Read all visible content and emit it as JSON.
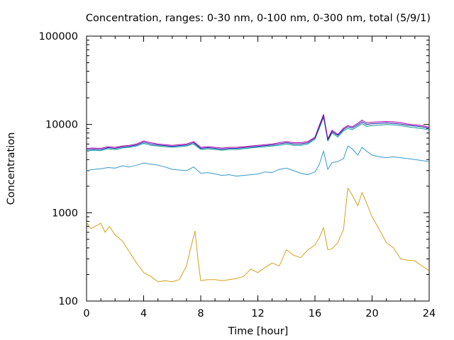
{
  "chart_data": {
    "type": "line",
    "title": "Concentration, ranges: 0-30 nm, 0-100 nm, 0-300 nm, total (5/9/1)",
    "xlabel": "Time [hour]",
    "ylabel": "Concentration",
    "xlim": [
      0,
      24
    ],
    "ylim": [
      100,
      100000
    ],
    "yscale": "log",
    "grid": false,
    "legend": "none",
    "x_ticks": [
      0,
      4,
      8,
      12,
      16,
      20,
      24
    ],
    "x_tick_labels": [
      "0",
      "4",
      "8",
      "12",
      "16",
      "20",
      "24"
    ],
    "y_ticks": [
      100,
      1000,
      10000,
      100000
    ],
    "y_tick_labels": [
      "100",
      "1000",
      "10000",
      "100000"
    ],
    "series": [
      {
        "color": "#d4a017",
        "x": [
          0,
          0.3,
          0.6,
          1.0,
          1.3,
          1.6,
          2.0,
          2.5,
          3.0,
          3.5,
          4.0,
          4.5,
          5.0,
          5.5,
          6.0,
          6.5,
          7.0,
          7.3,
          7.6,
          7.8,
          8.0,
          8.5,
          9.0,
          9.5,
          10.0,
          10.5,
          11.0,
          11.5,
          12.0,
          12.5,
          13.0,
          13.5,
          14.0,
          14.5,
          15.0,
          15.5,
          16.0,
          16.3,
          16.6,
          16.9,
          17.2,
          17.6,
          18.0,
          18.3,
          18.6,
          19.0,
          19.3,
          19.6,
          20.0,
          20.5,
          21.0,
          21.5,
          22.0,
          22.5,
          23.0,
          23.5,
          24.0
        ],
        "values": [
          780,
          660,
          700,
          760,
          600,
          700,
          560,
          480,
          360,
          270,
          210,
          190,
          165,
          170,
          165,
          175,
          250,
          400,
          620,
          300,
          170,
          175,
          175,
          170,
          175,
          180,
          190,
          230,
          210,
          240,
          270,
          250,
          380,
          330,
          310,
          380,
          430,
          520,
          680,
          380,
          390,
          460,
          650,
          1900,
          1600,
          1200,
          1700,
          1300,
          900,
          650,
          460,
          400,
          300,
          290,
          285,
          250,
          220
        ]
      },
      {
        "color": "#3399cc",
        "x": [
          0,
          0.5,
          1.0,
          1.5,
          2.0,
          2.5,
          3.0,
          3.5,
          4.0,
          4.5,
          5.0,
          5.5,
          6.0,
          6.5,
          7.0,
          7.5,
          8.0,
          8.5,
          9.0,
          9.5,
          10.0,
          10.5,
          11.0,
          11.5,
          12.0,
          12.5,
          13.0,
          13.5,
          14.0,
          14.5,
          15.0,
          15.5,
          16.0,
          16.3,
          16.6,
          16.9,
          17.2,
          17.6,
          18.0,
          18.3,
          18.6,
          19.0,
          19.3,
          19.6,
          20.0,
          20.5,
          21.0,
          21.5,
          22.0,
          22.5,
          23.0,
          23.5,
          24.0
        ],
        "values": [
          3000,
          3100,
          3150,
          3250,
          3200,
          3400,
          3300,
          3450,
          3650,
          3550,
          3450,
          3300,
          3100,
          3050,
          3000,
          3300,
          2800,
          2850,
          2750,
          2650,
          2700,
          2600,
          2650,
          2700,
          2750,
          2900,
          2850,
          3100,
          3200,
          3000,
          2800,
          2700,
          2900,
          3500,
          5000,
          3100,
          3700,
          3800,
          4100,
          5700,
          5300,
          4500,
          5500,
          5000,
          4500,
          4300,
          4200,
          4300,
          4200,
          4100,
          4000,
          3900,
          3800
        ]
      },
      {
        "color": "#009999",
        "x": [
          0,
          0.5,
          1.0,
          1.5,
          2.0,
          2.5,
          3.0,
          3.5,
          4.0,
          4.5,
          5.0,
          5.5,
          6.0,
          6.5,
          7.0,
          7.5,
          8.0,
          8.5,
          9.0,
          9.5,
          10.0,
          10.5,
          11.0,
          11.5,
          12.0,
          12.5,
          13.0,
          13.5,
          14.0,
          14.5,
          15.0,
          15.5,
          16.0,
          16.3,
          16.6,
          16.9,
          17.2,
          17.6,
          18.0,
          18.3,
          18.6,
          19.0,
          19.3,
          19.6,
          20.0,
          20.5,
          21.0,
          21.5,
          22.0,
          22.5,
          23.0,
          23.5,
          24.0
        ],
        "values": [
          5000,
          5100,
          5050,
          5300,
          5200,
          5400,
          5500,
          5700,
          6100,
          5800,
          5700,
          5600,
          5500,
          5600,
          5700,
          6000,
          5200,
          5300,
          5200,
          5100,
          5200,
          5200,
          5300,
          5400,
          5500,
          5600,
          5700,
          5800,
          6000,
          5800,
          5800,
          6000,
          6800,
          9000,
          12000,
          6500,
          8000,
          7200,
          8500,
          9000,
          8700,
          9500,
          10200,
          9500,
          9700,
          9800,
          10000,
          9900,
          9700,
          9400,
          9200,
          9000,
          8600
        ]
      },
      {
        "color": "#1a1aa8",
        "x": [
          0,
          0.5,
          1.0,
          1.5,
          2.0,
          2.5,
          3.0,
          3.5,
          4.0,
          4.5,
          5.0,
          5.5,
          6.0,
          6.5,
          7.0,
          7.5,
          8.0,
          8.5,
          9.0,
          9.5,
          10.0,
          10.5,
          11.0,
          11.5,
          12.0,
          12.5,
          13.0,
          13.5,
          14.0,
          14.5,
          15.0,
          15.5,
          16.0,
          16.3,
          16.6,
          16.9,
          17.2,
          17.6,
          18.0,
          18.3,
          18.6,
          19.0,
          19.3,
          19.6,
          20.0,
          20.5,
          21.0,
          21.5,
          22.0,
          22.5,
          23.0,
          23.5,
          24.0
        ],
        "values": [
          5200,
          5250,
          5200,
          5450,
          5350,
          5550,
          5650,
          5850,
          6300,
          6000,
          5850,
          5750,
          5650,
          5750,
          5850,
          6200,
          5350,
          5450,
          5350,
          5250,
          5350,
          5350,
          5450,
          5550,
          5650,
          5750,
          5850,
          6000,
          6200,
          6000,
          6000,
          6200,
          7000,
          9400,
          12500,
          6700,
          8300,
          7500,
          8800,
          9400,
          9100,
          9900,
          10700,
          10000,
          10200,
          10300,
          10400,
          10300,
          10100,
          9800,
          9600,
          9400,
          9000
        ]
      },
      {
        "color": "#aa00aa",
        "x": [
          0,
          0.5,
          1.0,
          1.5,
          2.0,
          2.5,
          3.0,
          3.5,
          4.0,
          4.5,
          5.0,
          5.5,
          6.0,
          6.5,
          7.0,
          7.5,
          8.0,
          8.5,
          9.0,
          9.5,
          10.0,
          10.5,
          11.0,
          11.5,
          12.0,
          12.5,
          13.0,
          13.5,
          14.0,
          14.5,
          15.0,
          15.5,
          16.0,
          16.3,
          16.6,
          16.9,
          17.2,
          17.6,
          18.0,
          18.3,
          18.6,
          19.0,
          19.3,
          19.6,
          20.0,
          20.5,
          21.0,
          21.5,
          22.0,
          22.5,
          23.0,
          23.5,
          24.0
        ],
        "values": [
          5350,
          5400,
          5350,
          5600,
          5500,
          5700,
          5800,
          6000,
          6500,
          6200,
          6000,
          5900,
          5800,
          5900,
          6000,
          6400,
          5500,
          5600,
          5500,
          5400,
          5500,
          5500,
          5600,
          5700,
          5800,
          5900,
          6000,
          6200,
          6400,
          6200,
          6200,
          6400,
          7200,
          9700,
          13000,
          6900,
          8600,
          7700,
          9100,
          9700,
          9400,
          10300,
          11200,
          10400,
          10600,
          10700,
          10800,
          10700,
          10500,
          10100,
          9900,
          9700,
          9300
        ]
      }
    ]
  }
}
